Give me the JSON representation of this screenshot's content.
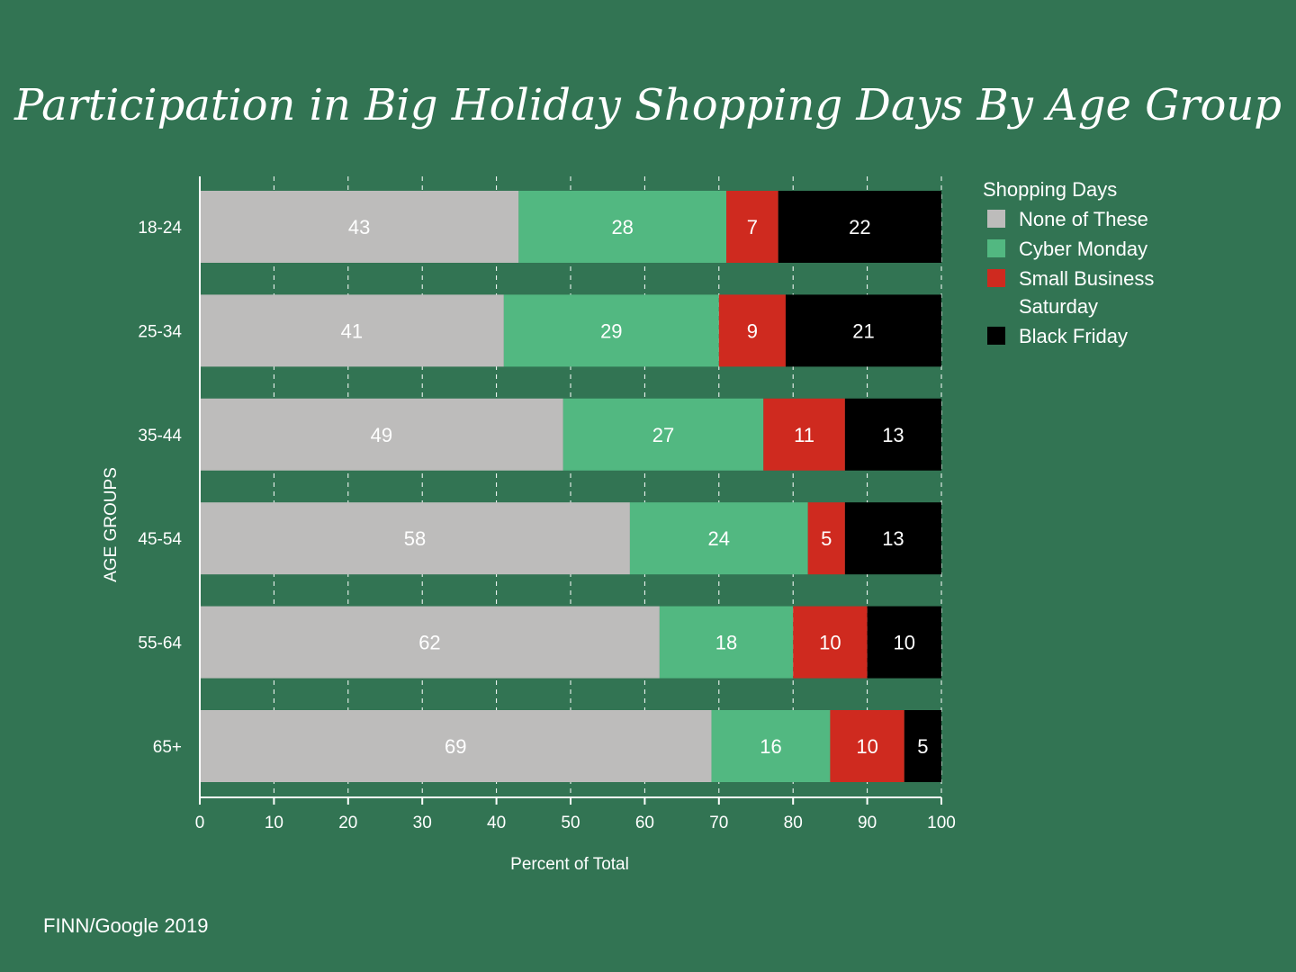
{
  "source": "FINN/Google 2019",
  "colors": {
    "background": "#327453",
    "grid": "#ffffff",
    "axis": "#ffffff",
    "text": "#ffffff"
  },
  "chart_data": {
    "type": "bar",
    "orientation": "horizontal",
    "stacked": true,
    "title": "Participation in Big Holiday Shopping Days By Age Group",
    "xlabel": "Percent of Total",
    "ylabel": "AGE GROUPS",
    "xlim": [
      0,
      100
    ],
    "xticks": [
      0,
      10,
      20,
      30,
      40,
      50,
      60,
      70,
      80,
      90,
      100
    ],
    "grid": "vertical dashed",
    "categories": [
      "18-24",
      "25-34",
      "35-44",
      "45-54",
      "55-64",
      "65+"
    ],
    "legend": {
      "title": "Shopping Days",
      "placement": "right"
    },
    "series": [
      {
        "name": "None of These",
        "color": "#bdbcbb",
        "label_color": "#ffffff",
        "values": [
          43,
          41,
          49,
          58,
          62,
          69
        ]
      },
      {
        "name": "Cyber Monday",
        "color": "#52b881",
        "label_color": "#ffffff",
        "values": [
          28,
          29,
          27,
          24,
          18,
          16
        ]
      },
      {
        "name": "Small Business Saturday",
        "legend_lines": [
          "Small Business",
          "Saturday"
        ],
        "color": "#cf2a1f",
        "label_color": "#ffffff",
        "values": [
          7,
          9,
          11,
          5,
          10,
          10
        ]
      },
      {
        "name": "Black Friday",
        "color": "#000000",
        "label_color": "#ffffff",
        "values": [
          22,
          21,
          13,
          13,
          10,
          5
        ]
      }
    ]
  }
}
